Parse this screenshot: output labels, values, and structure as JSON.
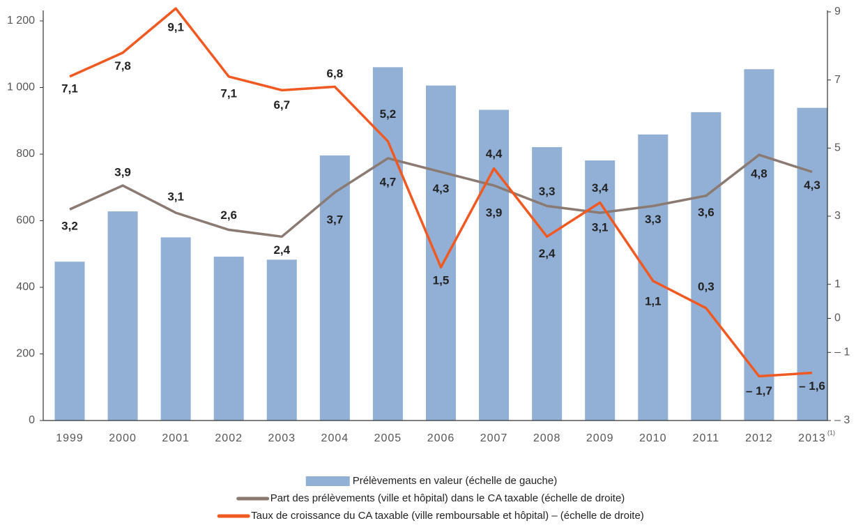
{
  "chart_data": {
    "type": "bar-line",
    "categories": [
      "1999",
      "2000",
      "2001",
      "2002",
      "2003",
      "2004",
      "2005",
      "2006",
      "2007",
      "2008",
      "2009",
      "2010",
      "2011",
      "2012",
      "2013"
    ],
    "category_note": "(1)",
    "series": [
      {
        "name": "Prélèvements en valeur (échelle de gauche)",
        "color": "#92afd6",
        "kind": "bar",
        "axis": "y",
        "values": [
          477,
          628,
          550,
          492,
          483,
          796,
          1061,
          1006,
          933,
          821,
          781,
          859,
          926,
          1055,
          939
        ]
      },
      {
        "name": "Part des prélèvements (ville et hôpital) dans le CA taxable (échelle de droite)",
        "color": "#8a7a72",
        "kind": "line",
        "axis": "y2",
        "values": [
          3.2,
          3.9,
          3.1,
          2.6,
          2.4,
          3.7,
          4.7,
          4.3,
          3.9,
          3.3,
          3.1,
          3.3,
          3.6,
          4.8,
          4.3
        ],
        "value_labels": [
          "3,2",
          "3,9",
          "3,1",
          "2,6",
          "2,4",
          "3,7",
          "4,7",
          "4,3",
          "3,9",
          "3,3",
          "3,1",
          "3,3",
          "3,6",
          "4,8",
          "4,3"
        ]
      },
      {
        "name": "Taux de croissance du CA taxable (ville remboursable et hôpital) – (échelle de droite)",
        "color": "#f05a22",
        "kind": "line",
        "axis": "y2",
        "values": [
          7.1,
          7.8,
          9.1,
          7.1,
          6.7,
          6.8,
          5.2,
          1.5,
          4.4,
          2.4,
          3.4,
          1.1,
          0.3,
          -1.7,
          -1.6
        ],
        "value_labels": [
          "7,1",
          "7,8",
          "9,1",
          "7,1",
          "6,7",
          "6,8",
          "5,2",
          "1,5",
          "4,4",
          "2,4",
          "3,4",
          "1,1",
          "0,3",
          "– 1,7",
          "– 1,6"
        ]
      }
    ],
    "ylim": [
      0,
      1200
    ],
    "yticks": [
      0,
      200,
      400,
      600,
      800,
      {
        "value": 1000,
        "label": "1 000"
      },
      {
        "value": 1200,
        "label": "1 200"
      }
    ],
    "y2lim": [
      -3,
      9
    ],
    "y2ticks": [
      9,
      7,
      5,
      3,
      1,
      0,
      {
        "value": -1,
        "label": "– 1"
      },
      {
        "value": -3,
        "label": "– 3"
      }
    ],
    "grid": false
  }
}
